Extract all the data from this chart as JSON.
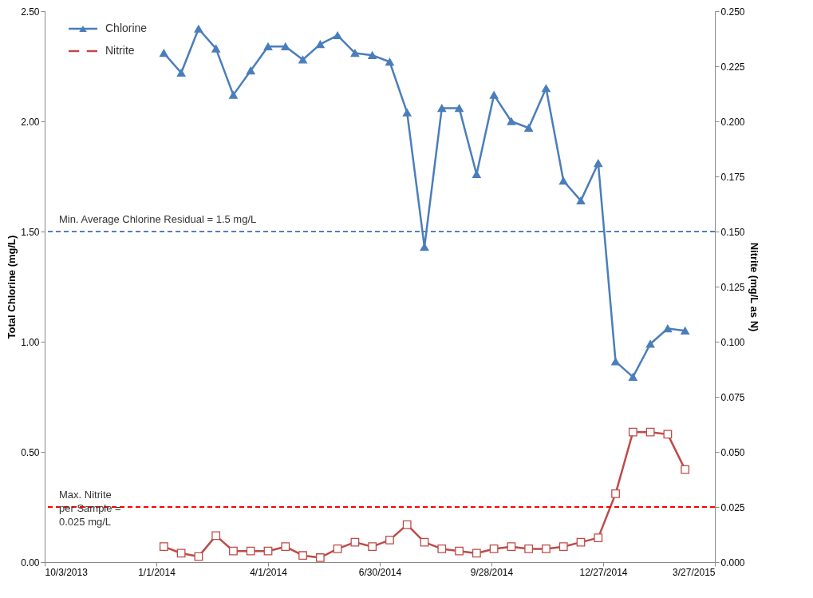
{
  "chart_data": {
    "type": "line",
    "x": [
      "2014-01-07",
      "2014-01-21",
      "2014-02-04",
      "2014-02-18",
      "2014-03-04",
      "2014-03-18",
      "2014-04-01",
      "2014-04-15",
      "2014-04-29",
      "2014-05-13",
      "2014-05-27",
      "2014-06-10",
      "2014-06-24",
      "2014-07-08",
      "2014-07-22",
      "2014-08-05",
      "2014-08-19",
      "2014-09-02",
      "2014-09-16",
      "2014-09-30",
      "2014-10-14",
      "2014-10-28",
      "2014-11-11",
      "2014-11-25",
      "2014-12-09",
      "2014-12-23",
      "2015-01-06",
      "2015-01-20",
      "2015-02-03",
      "2015-02-17",
      "2015-03-03"
    ],
    "series": [
      {
        "name": "Chlorine",
        "color": "#4a7ebb",
        "marker": "triangle",
        "axis": "y",
        "values": [
          2.31,
          2.22,
          2.42,
          2.33,
          2.12,
          2.23,
          2.34,
          2.34,
          2.28,
          2.35,
          2.39,
          2.31,
          2.3,
          2.27,
          2.04,
          1.43,
          2.06,
          2.06,
          1.76,
          2.12,
          2.0,
          1.97,
          2.15,
          1.73,
          1.64,
          1.81,
          0.91,
          0.84,
          0.99,
          1.06,
          1.05
        ]
      },
      {
        "name": "Nitrite",
        "color": "#be4b48",
        "marker": "square",
        "axis": "y2",
        "values": [
          0.007,
          0.004,
          0.0025,
          0.012,
          0.005,
          0.005,
          0.005,
          0.007,
          0.003,
          0.002,
          0.006,
          0.009,
          0.007,
          0.01,
          0.017,
          0.009,
          0.006,
          0.005,
          0.004,
          0.006,
          0.007,
          0.006,
          0.006,
          0.007,
          0.009,
          0.011,
          0.031,
          0.059,
          0.059,
          0.058,
          0.042
        ]
      }
    ],
    "ylabel": "Total Chlorine  (mg/L)",
    "y2label": "Nitrite (mg/L as N)",
    "xlim": [
      "2013-10-03",
      "2015-03-27"
    ],
    "xticks": [
      {
        "value": "2013-10-03",
        "label": "10/3/2013"
      },
      {
        "value": "2014-01-01",
        "label": "1/1/2014"
      },
      {
        "value": "2014-04-01",
        "label": "4/1/2014"
      },
      {
        "value": "2014-06-30",
        "label": "6/30/2014"
      },
      {
        "value": "2014-09-28",
        "label": "9/28/2014"
      },
      {
        "value": "2014-12-27",
        "label": "12/27/2014"
      },
      {
        "value": "2015-03-27",
        "label": "3/27/2015"
      }
    ],
    "ylim": [
      0,
      2.5
    ],
    "yticks": [
      {
        "value": 0,
        "label": "0.00"
      },
      {
        "value": 0.5,
        "label": "0.50"
      },
      {
        "value": 1,
        "label": "1.00"
      },
      {
        "value": 1.5,
        "label": "1.50"
      },
      {
        "value": 2,
        "label": "2.00"
      },
      {
        "value": 2.5,
        "label": "2.50"
      }
    ],
    "y2lim": [
      0,
      0.25
    ],
    "y2ticks": [
      {
        "value": 0,
        "label": "0.000"
      },
      {
        "value": 0.025,
        "label": "0.025"
      },
      {
        "value": 0.05,
        "label": "0.050"
      },
      {
        "value": 0.075,
        "label": "0.075"
      },
      {
        "value": 0.1,
        "label": "0.100"
      },
      {
        "value": 0.125,
        "label": "0.125"
      },
      {
        "value": 0.15,
        "label": "0.150"
      },
      {
        "value": 0.175,
        "label": "0.175"
      },
      {
        "value": 0.2,
        "label": "0.200"
      },
      {
        "value": 0.225,
        "label": "0.225"
      },
      {
        "value": 0.25,
        "label": "0.250"
      }
    ],
    "ref_lines": [
      {
        "axis": "y",
        "value": 1.5,
        "label": "Min. Average Chlorine Residual = 1.5 mg/L",
        "color": "#4f81bd",
        "line_style": "dashed"
      },
      {
        "axis": "y2",
        "value": 0.025,
        "label": "Max. Nitrite\nper Sample =\n0.025 mg/L",
        "color": "#ff0000",
        "line_style": "dashed"
      }
    ],
    "grid": false,
    "legend": "top left"
  }
}
